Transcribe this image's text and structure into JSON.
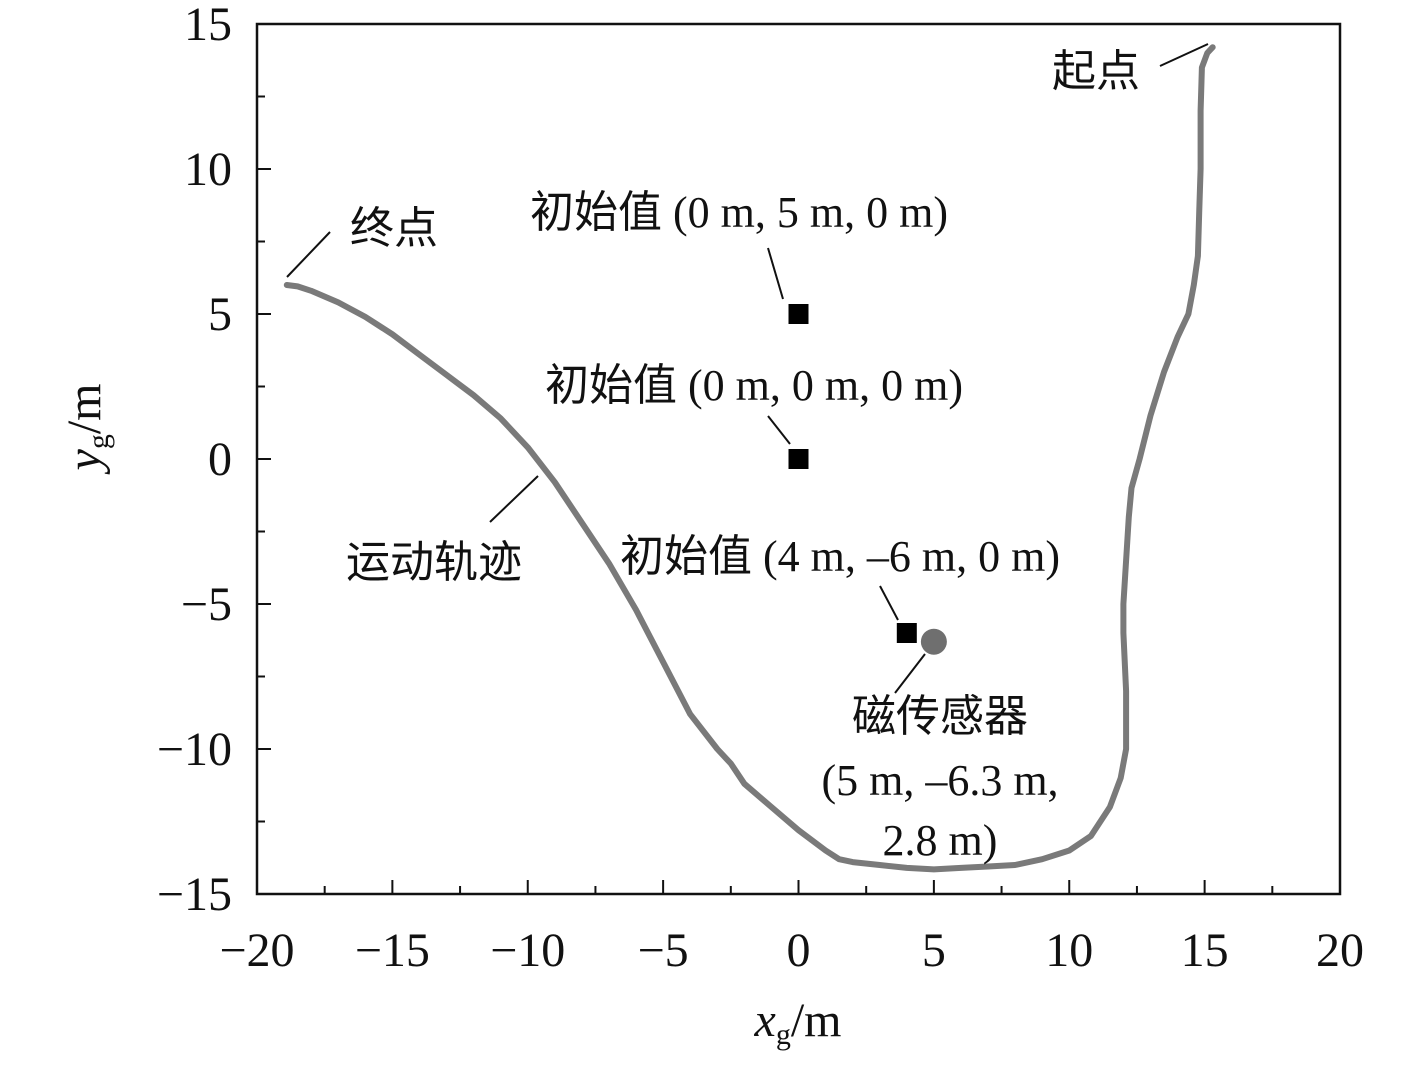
{
  "chart_data": {
    "type": "line",
    "title": "",
    "xlabel": {
      "var": "x",
      "sub": "g",
      "unit": "/m"
    },
    "ylabel": {
      "var": "y",
      "sub": "g",
      "unit": "/m"
    },
    "xlim": [
      -20,
      20
    ],
    "ylim": [
      -15,
      15
    ],
    "xticks": [
      -20,
      -15,
      -10,
      -5,
      0,
      5,
      10,
      15,
      20
    ],
    "yticks": [
      -15,
      -10,
      -5,
      0,
      5,
      10,
      15
    ],
    "xtick_labels": [
      "−20",
      "−15",
      "−10",
      "−5",
      "0",
      "5",
      "10",
      "15",
      "20"
    ],
    "ytick_labels": [
      "−15",
      "−10",
      "−5",
      "0",
      "5",
      "10",
      "15"
    ],
    "minor_step": 2.5,
    "grid": false,
    "trajectory": {
      "color": "#7a7a7a",
      "x": [
        15.3,
        15.1,
        14.9,
        14.85,
        14.85,
        14.8,
        14.75,
        14.6,
        14.4,
        14.0,
        13.5,
        13.0,
        12.6,
        12.3,
        12.2,
        12.1,
        12.0,
        12.0,
        12.1,
        12.1,
        11.9,
        11.5,
        10.8,
        10.0,
        9.0,
        8.0,
        7.0,
        6.0,
        5.0,
        4.0,
        3.0,
        2.0,
        1.5,
        1.0,
        0.0,
        -1.0,
        -2.0,
        -2.5,
        -3.0,
        -4.0,
        -5.0,
        -6.0,
        -7.0,
        -8.0,
        -9.0,
        -10.0,
        -11.0,
        -12.0,
        -13.0,
        -14.0,
        -15.0,
        -16.0,
        -17.0,
        -18.0,
        -18.5,
        -18.9
      ],
      "y": [
        14.2,
        14.0,
        13.5,
        12.0,
        10.0,
        8.5,
        7.0,
        6.0,
        5.0,
        4.2,
        3.0,
        1.5,
        0.0,
        -1.0,
        -2.0,
        -3.5,
        -5.0,
        -6.0,
        -8.0,
        -10.0,
        -11.0,
        -12.0,
        -13.0,
        -13.5,
        -13.8,
        -14.0,
        -14.05,
        -14.1,
        -14.15,
        -14.1,
        -14.0,
        -13.9,
        -13.8,
        -13.5,
        -12.8,
        -12.0,
        -11.2,
        -10.5,
        -10.0,
        -8.8,
        -7.0,
        -5.2,
        -3.6,
        -2.2,
        -0.8,
        0.4,
        1.4,
        2.2,
        2.9,
        3.6,
        4.3,
        4.9,
        5.4,
        5.8,
        5.95,
        6.0
      ]
    },
    "initial_values": {
      "color": "#000000",
      "points": [
        {
          "x": 0,
          "y": 5,
          "label": "初始值 (0 m, 5 m, 0 m)"
        },
        {
          "x": 0,
          "y": 0,
          "label": "初始值 (0 m, 0 m, 0 m)"
        },
        {
          "x": 4,
          "y": -6,
          "label": "初始值 (4 m, –6 m, 0 m)"
        }
      ]
    },
    "sensor": {
      "x": 5,
      "y": -6.3,
      "z": 2.8,
      "color": "#6f6f6f",
      "label_lines": [
        "磁传感器",
        "(5 m, –6.3 m,",
        "2.8 m)"
      ]
    },
    "annotations": {
      "start": "起点",
      "end": "终点",
      "trajectory": "运动轨迹"
    }
  }
}
